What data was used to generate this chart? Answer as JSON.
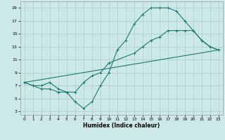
{
  "xlabel": "Humidex (Indice chaleur)",
  "bg_color": "#cce8e8",
  "grid_color": "#b0d0d0",
  "line_color": "#1a7a6e",
  "xlim": [
    -0.5,
    23.5
  ],
  "ylim": [
    2.5,
    20.0
  ],
  "yticks": [
    3,
    5,
    7,
    9,
    11,
    13,
    15,
    17,
    19
  ],
  "xticks": [
    0,
    1,
    2,
    3,
    4,
    5,
    6,
    7,
    8,
    9,
    10,
    11,
    12,
    13,
    14,
    15,
    16,
    17,
    18,
    19,
    20,
    21,
    22,
    23
  ],
  "line1_x": [
    0,
    1,
    2,
    3,
    4,
    5,
    6,
    7,
    8,
    9,
    10,
    11,
    12,
    13,
    14,
    15,
    16,
    17,
    18,
    19,
    20,
    21,
    22,
    23
  ],
  "line1_y": [
    7.5,
    7.0,
    6.5,
    6.5,
    6.0,
    6.0,
    4.5,
    3.5,
    4.5,
    7.0,
    9.0,
    12.5,
    14.0,
    16.5,
    18.0,
    19.0,
    19.0,
    19.0,
    18.5,
    17.0,
    15.5,
    14.0,
    13.0,
    12.5
  ],
  "line2_x": [
    0,
    1,
    2,
    3,
    4,
    5,
    6,
    7,
    8,
    9,
    10,
    13,
    14,
    15,
    16,
    17,
    18,
    19,
    20,
    21,
    22,
    23
  ],
  "line2_y": [
    7.5,
    7.0,
    7.0,
    7.5,
    6.5,
    6.0,
    6.0,
    7.5,
    8.5,
    9.0,
    10.5,
    12.0,
    13.0,
    14.0,
    14.5,
    15.5,
    15.5,
    15.5,
    15.5,
    14.0,
    13.0,
    12.5
  ],
  "line3_x": [
    0,
    23
  ],
  "line3_y": [
    7.5,
    12.5
  ]
}
